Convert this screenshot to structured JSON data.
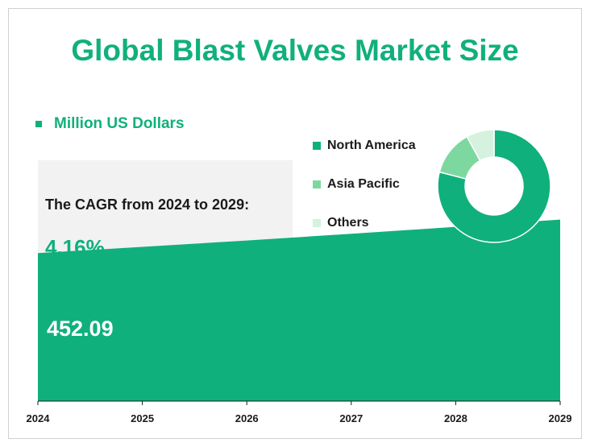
{
  "title": "Global Blast Valves Market Size",
  "unit_legend": "Million US Dollars",
  "cagr": {
    "label": "The CAGR from 2024 to 2029:",
    "value": "4.16%"
  },
  "first_value_label": "452.09",
  "colors": {
    "accent": "#10b07c",
    "north_america": "#10b07c",
    "asia_pacific": "#7dd8a0",
    "others": "#d4f2de"
  },
  "chart_data": [
    {
      "type": "area",
      "title": "Global Blast Valves Market Size",
      "x": [
        "2024",
        "2025",
        "2026",
        "2027",
        "2028",
        "2029"
      ],
      "series": [
        {
          "name": "Million US Dollars",
          "values": [
            452.09,
            470.9,
            490.5,
            510.9,
            532.2,
            554.3
          ]
        }
      ],
      "ylim": [
        0,
        610
      ],
      "grid": false
    },
    {
      "type": "pie",
      "donut": true,
      "legend_position": "left",
      "categories": [
        "North America",
        "Asia Pacific",
        "Others"
      ],
      "values": [
        79,
        13,
        8
      ]
    }
  ]
}
